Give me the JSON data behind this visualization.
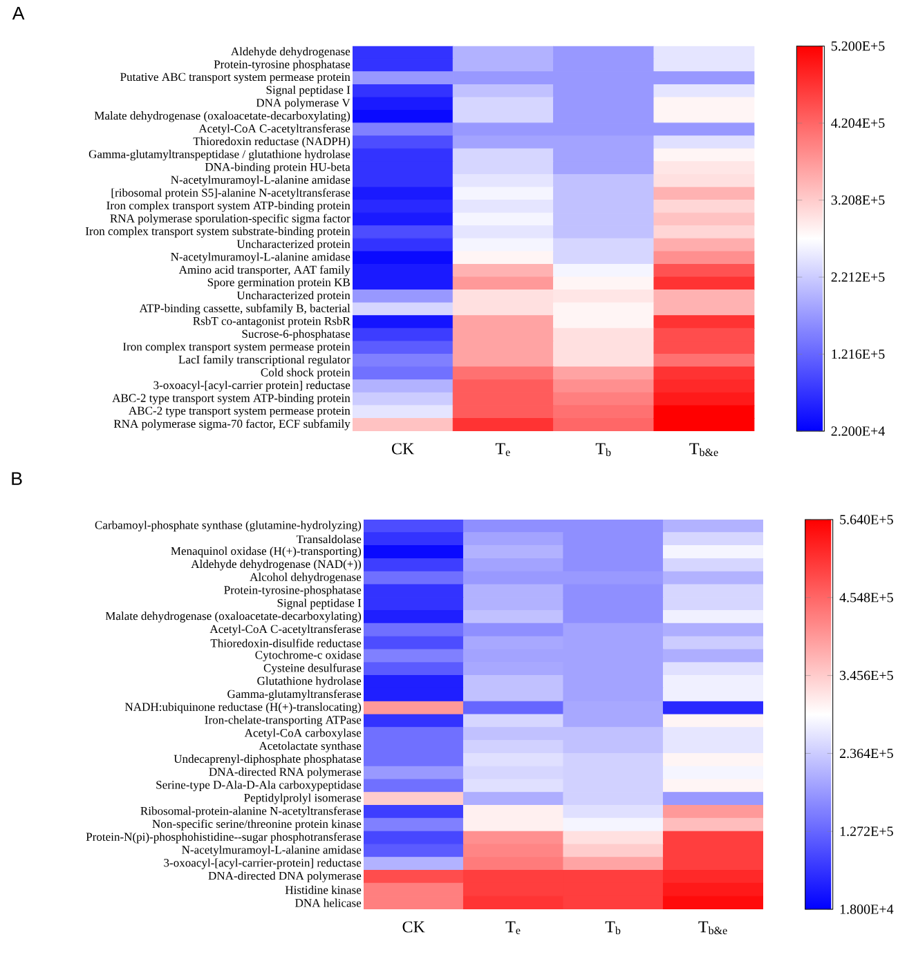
{
  "chart_data": [
    {
      "type": "heatmap",
      "title": "A",
      "categories": [
        "CK",
        "T$_{e}$",
        "T$_{b}$",
        "T$_{b&e}$"
      ],
      "y_categories": [
        "Aldehyde dehydrogenase",
        "Protein-tyrosine phosphatase",
        "Putative ABC transport system permease protein",
        "Signal peptidase I",
        "DNA polymerase V",
        "Malate dehydrogenase (oxaloacetate-decarboxylating)",
        "Acetyl-CoA C-acetyltransferase",
        "Thioredoxin reductase (NADPH)",
        "Gamma-glutamyltranspeptidase / glutathione hydrolase",
        "DNA-binding protein HU-beta",
        "N-acetylmuramoyl-L-alanine amidase",
        "[ribosomal protein S5]-alanine N-acetyltransferase",
        "Iron complex transport system ATP-binding protein",
        "RNA polymerase sporulation-specific sigma factor",
        "Iron complex transport system substrate-binding protein",
        "Uncharacterized protein",
        "N-acetylmuramoyl-L-alanine amidase",
        "Amino acid transporter, AAT family",
        "Spore germination protein KB",
        "Uncharacterized protein",
        "ATP-binding cassette, subfamily B, bacterial",
        "RsbT co-antagonist protein RsbR",
        "Sucrose-6-phosphatase",
        "Iron complex transport system permease protein",
        "LacI family transcriptional regulator",
        "Cold shock protein",
        "3-oxoacyl-[acyl-carrier protein] reductase",
        "ABC-2 type transport system ATP-binding protein",
        "ABC-2 type transport system permease protein",
        "RNA polymerase sigma-70 factor, ECF subfamily"
      ],
      "cells": [
        [
          72000,
          196000,
          171000,
          246000
        ],
        [
          72000,
          196000,
          171000,
          246000
        ],
        [
          171000,
          171000,
          171000,
          171000
        ],
        [
          72000,
          211000,
          171000,
          246000
        ],
        [
          47000,
          231000,
          171000,
          281000
        ],
        [
          32000,
          231000,
          171000,
          281000
        ],
        [
          147000,
          171000,
          171000,
          171000
        ],
        [
          97000,
          181000,
          181000,
          241000
        ],
        [
          72000,
          231000,
          181000,
          281000
        ],
        [
          72000,
          231000,
          181000,
          296000
        ],
        [
          72000,
          246000,
          211000,
          301000
        ],
        [
          47000,
          261000,
          211000,
          346000
        ],
        [
          62000,
          246000,
          211000,
          311000
        ],
        [
          47000,
          261000,
          211000,
          331000
        ],
        [
          97000,
          246000,
          211000,
          311000
        ],
        [
          72000,
          261000,
          231000,
          351000
        ],
        [
          32000,
          281000,
          231000,
          381000
        ],
        [
          47000,
          346000,
          261000,
          440000
        ],
        [
          47000,
          371000,
          281000,
          470000
        ],
        [
          171000,
          301000,
          296000,
          346000
        ],
        [
          231000,
          301000,
          281000,
          346000
        ],
        [
          42000,
          361000,
          281000,
          470000
        ],
        [
          82000,
          361000,
          301000,
          445000
        ],
        [
          112000,
          361000,
          301000,
          445000
        ],
        [
          147000,
          361000,
          301000,
          410000
        ],
        [
          132000,
          410000,
          361000,
          470000
        ],
        [
          196000,
          430000,
          381000,
          480000
        ],
        [
          221000,
          430000,
          396000,
          495000
        ],
        [
          246000,
          430000,
          410000,
          520000
        ],
        [
          331000,
          470000,
          420000,
          520000
        ]
      ],
      "clim": [
        22000,
        520000
      ],
      "cticks": [
        {
          "value": 22000,
          "label": "2.200E+4"
        },
        {
          "value": 121600,
          "label": "1.216E+5"
        },
        {
          "value": 221200,
          "label": "2.212E+5"
        },
        {
          "value": 320800,
          "label": "3.208E+5"
        },
        {
          "value": 420400,
          "label": "4.204E+5"
        },
        {
          "value": 520000,
          "label": "5.200E+5"
        }
      ]
    },
    {
      "type": "heatmap",
      "title": "B",
      "categories": [
        "CK",
        "T$_{e}$",
        "T$_{b}$",
        "T$_{b&e}$"
      ],
      "y_categories": [
        "Carbamoyl-phosphate synthase (glutamine-hydrolyzing)",
        "Transaldolase",
        "Menaquinol oxidase (H(+)-transporting)",
        "Aldehyde dehydrogenase (NAD(+))",
        "Alcohol dehydrogenase",
        "Protein-tyrosine-phosphatase",
        "Signal peptidase I",
        "Malate dehydrogenase (oxaloacetate-decarboxylating)",
        "Acetyl-CoA C-acetyltransferase",
        "Thioredoxin-disulfide reductase",
        "Cytochrome-c oxidase",
        "Cysteine desulfurase",
        "Glutathione hydrolase",
        "Gamma-glutamyltransferase",
        "NADH:ubiquinone reductase (H(+)-translocating)",
        "Iron-chelate-transporting ATPase",
        "Acetyl-CoA carboxylase",
        "Acetolactate synthase",
        "Undecaprenyl-diphosphate phosphatase",
        "DNA-directed RNA polymerase",
        "Serine-type D-Ala-D-Ala carboxypeptidase",
        "Peptidylprolyl isomerase",
        "Ribosomal-protein-alanine N-acetyltransferase",
        "Non-specific serine/threonine protein kinase",
        "Protein-N(pi)-phosphohistidine--sugar phosphotransferase",
        "N-acetylmuramoyl-L-alanine amidase",
        "3-oxoacyl-[acyl-carrier-protein] reductase",
        "DNA-directed DNA polymerase",
        "Histidine kinase",
        "DNA helicase"
      ],
      "cells": [
        [
          100000,
          171000,
          171000,
          209000
        ],
        [
          73000,
          193000,
          171000,
          247000
        ],
        [
          29000,
          209000,
          171000,
          280000
        ],
        [
          84000,
          193000,
          171000,
          247000
        ],
        [
          138000,
          182000,
          182000,
          209000
        ],
        [
          73000,
          209000,
          171000,
          247000
        ],
        [
          73000,
          209000,
          171000,
          247000
        ],
        [
          51000,
          225000,
          171000,
          275000
        ],
        [
          138000,
          171000,
          193000,
          204000
        ],
        [
          100000,
          198000,
          193000,
          236400
        ],
        [
          155000,
          193000,
          193000,
          204000
        ],
        [
          116000,
          198000,
          193000,
          258000
        ],
        [
          51000,
          225000,
          193000,
          275000
        ],
        [
          51000,
          225000,
          193000,
          275000
        ],
        [
          400000,
          127200,
          198000,
          62000
        ],
        [
          73000,
          247000,
          198000,
          302000
        ],
        [
          138000,
          225000,
          225000,
          264000
        ],
        [
          138000,
          242000,
          225000,
          264000
        ],
        [
          138000,
          258000,
          242000,
          302000
        ],
        [
          182000,
          247000,
          242000,
          280000
        ],
        [
          138000,
          258000,
          242000,
          302000
        ],
        [
          346000,
          204000,
          242000,
          182000
        ],
        [
          84000,
          307000,
          258000,
          400000
        ],
        [
          155000,
          307000,
          280000,
          362000
        ],
        [
          94000,
          411000,
          324000,
          498000
        ],
        [
          116000,
          422000,
          346000,
          498000
        ],
        [
          209000,
          433000,
          389000,
          498000
        ],
        [
          482000,
          498000,
          498000,
          520000
        ],
        [
          428000,
          498000,
          498000,
          537000
        ],
        [
          428000,
          509000,
          498000,
          553000
        ]
      ],
      "clim": [
        18000,
        564000
      ],
      "cticks": [
        {
          "value": 18000,
          "label": "1.800E+4"
        },
        {
          "value": 127200,
          "label": "1.272E+5"
        },
        {
          "value": 236400,
          "label": "2.364E+5"
        },
        {
          "value": 345600,
          "label": "3.456E+5"
        },
        {
          "value": 454800,
          "label": "4.548E+5"
        },
        {
          "value": 564000,
          "label": "5.640E+5"
        }
      ]
    }
  ]
}
